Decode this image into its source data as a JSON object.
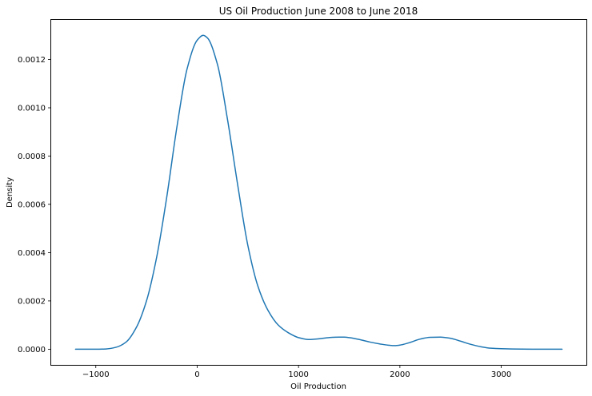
{
  "chart_data": {
    "type": "line",
    "title": "US Oil Production June 2008 to June 2018",
    "xlabel": "Oil Production",
    "ylabel": "Density",
    "xlim": [
      -1440,
      3840
    ],
    "ylim": [
      -6.49e-05,
      0.0013638
    ],
    "xticks": [
      -1000,
      0,
      1000,
      2000,
      3000
    ],
    "xtick_labels": [
      "−1000",
      "0",
      "1000",
      "2000",
      "3000"
    ],
    "yticks": [
      0,
      0.0002,
      0.0004,
      0.0006,
      0.0008,
      0.001,
      0.0012
    ],
    "ytick_labels": [
      "0.0000",
      "0.0002",
      "0.0004",
      "0.0006",
      "0.0008",
      "0.0010",
      "0.0012"
    ],
    "grid": false,
    "color": "#1f77b4",
    "series": [
      {
        "x": [
          -1200,
          -1000,
          -900,
          -800,
          -700,
          -600,
          -500,
          -400,
          -300,
          -200,
          -100,
          0,
          60,
          100,
          200,
          300,
          400,
          500,
          600,
          700,
          800,
          900,
          1000,
          1100,
          1200,
          1300,
          1400,
          1450,
          1500,
          1600,
          1700,
          1800,
          1900,
          1950,
          2000,
          2100,
          2200,
          2300,
          2400,
          2500,
          2600,
          2700,
          2800,
          2900,
          3000,
          3200,
          3400,
          3600
        ],
        "y": [
          0.0,
          0.0,
          1e-06,
          8e-06,
          3e-05,
          9e-05,
          0.0002,
          0.00038,
          0.00063,
          0.00092,
          0.00116,
          0.00128,
          0.0013,
          0.00129,
          0.00118,
          0.00095,
          0.00068,
          0.00043,
          0.00026,
          0.00016,
          0.0001,
          6.8e-05,
          4.8e-05,
          4e-05,
          4.3e-05,
          4.8e-05,
          5e-05,
          5e-05,
          4.8e-05,
          4e-05,
          3e-05,
          2.2e-05,
          1.6e-05,
          1.5e-05,
          1.7e-05,
          2.8e-05,
          4.2e-05,
          4.9e-05,
          5e-05,
          4.5e-05,
          3.3e-05,
          2e-05,
          1e-05,
          4e-06,
          2e-06,
          5e-07,
          0.0,
          0.0
        ]
      }
    ]
  }
}
